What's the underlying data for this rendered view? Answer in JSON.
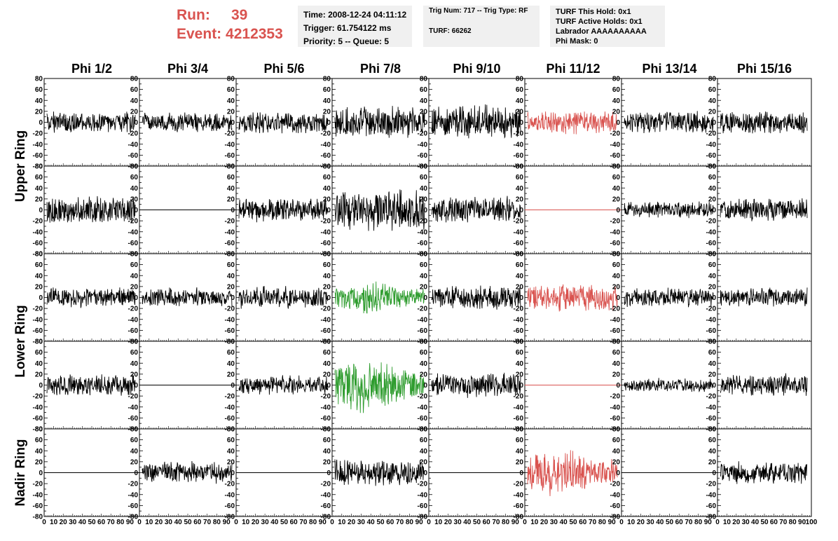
{
  "header": {
    "run_label": "Run:",
    "run_value": "39",
    "event_label": "Event:",
    "event_value": "4212353"
  },
  "info_time": {
    "line1": "Time: 2008-12-24 04:11:12",
    "line2": "Trigger: 61.754122 ms",
    "line3": "Priority: 5 -- Queue: 5"
  },
  "info_trig": {
    "line1": "Trig Num: 717 -- Trig Type: RF",
    "line2": "TURF: 66262"
  },
  "info_turf": {
    "line1": "TURF This Hold: 0x1",
    "line2": "TURF Active Holds: 0x1",
    "line3": "Labrador AAAAAAAAAA",
    "line4": "Phi Mask: 0"
  },
  "colors": {
    "normal": "#000000",
    "triggered_red": "#d9534f",
    "triggered_green": "#2e9c2e",
    "header_red": "#d9534f",
    "info_bg": "#f0f0f0"
  },
  "chart_data": {
    "type": "line",
    "column_titles": [
      "Phi 1/2",
      "Phi 3/4",
      "Phi 5/6",
      "Phi 7/8",
      "Phi 9/10",
      "Phi 11/12",
      "Phi 13/14",
      "Phi 15/16"
    ],
    "ring_labels": [
      "Upper Ring",
      "Lower Ring",
      "Nadir Ring"
    ],
    "y_ticks": [
      -80,
      -60,
      -40,
      -20,
      0,
      20,
      40,
      60,
      80
    ],
    "x_ticks": [
      0,
      10,
      20,
      30,
      40,
      50,
      60,
      70,
      80,
      90,
      100
    ],
    "ylim": [
      -80,
      80
    ],
    "xlim": [
      0,
      100
    ],
    "x_axis_tick_labels": [
      "0",
      "10",
      "20",
      "30",
      "40",
      "50",
      "60",
      "70",
      "80",
      "90",
      "0",
      "10",
      "20",
      "30",
      "40",
      "50",
      "60",
      "70",
      "80",
      "90",
      "0",
      "10",
      "20",
      "30",
      "40",
      "50",
      "60",
      "70",
      "80",
      "90",
      "0",
      "10",
      "20",
      "30",
      "40",
      "50",
      "60",
      "70",
      "80",
      "90",
      "0",
      "10",
      "20",
      "30",
      "40",
      "50",
      "60",
      "70",
      "80",
      "90",
      "0",
      "10",
      "20",
      "30",
      "40",
      "50",
      "60",
      "70",
      "80",
      "90",
      "0",
      "10",
      "20",
      "30",
      "40",
      "50",
      "60",
      "70",
      "80",
      "90",
      "0",
      "10",
      "20",
      "30",
      "40",
      "50",
      "60",
      "70",
      "80",
      "90",
      "100"
    ],
    "panels": [
      [
        {
          "amp": 18,
          "color": "normal"
        },
        {
          "amp": 16,
          "color": "normal"
        },
        {
          "amp": 18,
          "color": "normal"
        },
        {
          "amp": 26,
          "color": "normal"
        },
        {
          "amp": 28,
          "color": "normal"
        },
        {
          "amp": 20,
          "color": "triggered_red"
        },
        {
          "amp": 18,
          "color": "normal"
        },
        {
          "amp": 18,
          "color": "normal"
        }
      ],
      [
        {
          "amp": 22,
          "color": "normal"
        },
        {
          "amp": 0,
          "color": "normal"
        },
        {
          "amp": 20,
          "color": "normal"
        },
        {
          "amp": 35,
          "color": "normal"
        },
        {
          "amp": 22,
          "color": "normal"
        },
        {
          "amp": 0,
          "color": "triggered_red"
        },
        {
          "amp": 14,
          "color": "normal"
        },
        {
          "amp": 20,
          "color": "normal"
        }
      ],
      [
        {
          "amp": 16,
          "color": "normal"
        },
        {
          "amp": 16,
          "color": "normal"
        },
        {
          "amp": 18,
          "color": "normal"
        },
        {
          "amp": 24,
          "color": "triggered_green"
        },
        {
          "amp": 20,
          "color": "normal"
        },
        {
          "amp": 22,
          "color": "triggered_red"
        },
        {
          "amp": 16,
          "color": "normal"
        },
        {
          "amp": 16,
          "color": "normal"
        }
      ],
      [
        {
          "amp": 18,
          "color": "normal"
        },
        {
          "amp": 0,
          "color": "normal"
        },
        {
          "amp": 16,
          "color": "normal"
        },
        {
          "amp": 40,
          "color": "triggered_green"
        },
        {
          "amp": 20,
          "color": "normal"
        },
        {
          "amp": 0,
          "color": "triggered_red"
        },
        {
          "amp": 12,
          "color": "normal"
        },
        {
          "amp": 18,
          "color": "normal"
        }
      ],
      [
        {
          "amp": 0,
          "color": "normal"
        },
        {
          "amp": 18,
          "color": "normal"
        },
        {
          "amp": 0,
          "color": "normal"
        },
        {
          "amp": 24,
          "color": "normal"
        },
        {
          "amp": 0,
          "color": "normal"
        },
        {
          "amp": 36,
          "color": "triggered_red"
        },
        {
          "amp": 0,
          "color": "normal"
        },
        {
          "amp": 18,
          "color": "normal"
        }
      ]
    ]
  }
}
